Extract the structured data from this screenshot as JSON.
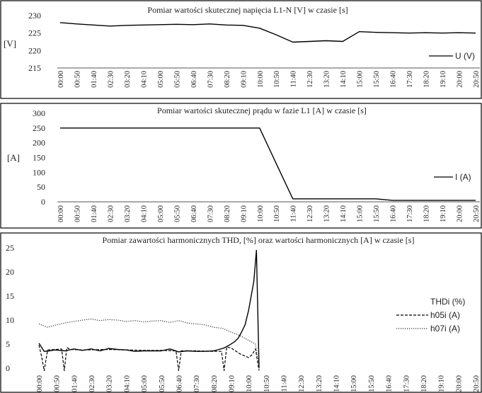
{
  "chart_data": [
    {
      "type": "line",
      "title": "Pomiar wartości skutecznej napięcia L1-N [V] w czasie [s]",
      "ylabel": "[V]",
      "xlabel": "",
      "ylim": [
        215,
        230
      ],
      "yticks": [
        215,
        220,
        225,
        230
      ],
      "categories": [
        "00:00",
        "00:50",
        "01:40",
        "02:30",
        "03:20",
        "04:10",
        "05:00",
        "05:50",
        "06:40",
        "07:30",
        "08:20",
        "09:10",
        "10:00",
        "10:50",
        "11:40",
        "12:30",
        "13:20",
        "14:10",
        "15:00",
        "15:50",
        "16:40",
        "17:30",
        "18:20",
        "19:10",
        "20:00",
        "20:50"
      ],
      "legend": "right",
      "series": [
        {
          "name": "U (V)",
          "color": "#000000",
          "dash": "solid",
          "values": [
            228,
            227.6,
            227.3,
            227,
            227.2,
            227.3,
            227.4,
            227.5,
            227.4,
            227.6,
            227.3,
            227.2,
            226.4,
            224.5,
            222.4,
            222.6,
            222.8,
            222.6,
            225.4,
            225.2,
            225.1,
            225,
            225.1,
            225,
            225.1,
            225
          ]
        }
      ]
    },
    {
      "type": "line",
      "title": "Pomiar wartości skutecznej prądu w fazie L1 [A] w czasie [s]",
      "ylabel": "[A]",
      "xlabel": "",
      "ylim": [
        0,
        300
      ],
      "yticks": [
        0,
        50,
        100,
        150,
        200,
        250,
        300
      ],
      "categories": [
        "00:00",
        "00:50",
        "01:40",
        "02:30",
        "03:20",
        "04:10",
        "05:00",
        "05:50",
        "06:40",
        "07:30",
        "08:20",
        "09:10",
        "10:00",
        "10:50",
        "11:40",
        "12:30",
        "13:20",
        "14:10",
        "15:00",
        "15:50",
        "16:40",
        "17:30",
        "18:20",
        "19:10",
        "20:00",
        "20:50"
      ],
      "legend": "right",
      "series": [
        {
          "name": "I (A)",
          "color": "#000000",
          "dash": "solid",
          "values": [
            250,
            250,
            250,
            250,
            250,
            250,
            250,
            250,
            250,
            250,
            250,
            250,
            250,
            130,
            10,
            10,
            10,
            10,
            10,
            10,
            5,
            5,
            5,
            5,
            5,
            5
          ]
        }
      ]
    },
    {
      "type": "line",
      "title": "Pomiar zawartości harmonicznych THD, [%] oraz wartości harmonicznych [A] w czasie [s]",
      "ylabel": "",
      "xlabel": "",
      "ylim": [
        0,
        25
      ],
      "yticks": [
        0,
        5,
        10,
        15,
        20,
        25
      ],
      "categories": [
        "00:00",
        "00:50",
        "01:40",
        "02:30",
        "03:20",
        "04:10",
        "05:00",
        "05:50",
        "06:40",
        "07:30",
        "08:20",
        "09:10",
        "10:00",
        "10:50",
        "11:40",
        "12:30",
        "13:20",
        "14:10",
        "15:00",
        "15:50",
        "16:40",
        "17:30",
        "18:20",
        "19:10",
        "20:00",
        "20:50"
      ],
      "legend": "right",
      "series": [
        {
          "name": "THDi (%)",
          "color": "#000000",
          "dash": "solid",
          "x": [
            0,
            0.3,
            0.6,
            0.9,
            1.2,
            1.5,
            2,
            2.5,
            3,
            3.5,
            4,
            4.5,
            5,
            5.5,
            6,
            6.5,
            7,
            7.5,
            8,
            8.5,
            9,
            9.5,
            10,
            10.3,
            10.6,
            10.9,
            11.2,
            11.4,
            11.6,
            11.8,
            12,
            12.15,
            12.3,
            12.45,
            12.6
          ],
          "values": [
            5.2,
            3.5,
            3.6,
            3.8,
            3.7,
            3.6,
            4,
            3.7,
            4,
            3.6,
            4.1,
            3.9,
            3.8,
            3.5,
            3.6,
            3.6,
            3.6,
            4,
            3.4,
            3.6,
            3.5,
            3.5,
            3.6,
            3.9,
            4.2,
            4.8,
            5.5,
            6.2,
            7.5,
            9,
            12,
            15,
            18,
            24.5,
            0
          ]
        },
        {
          "name": "h05i (A)",
          "color": "#000000",
          "dash": "dashed",
          "x": [
            0,
            0.15,
            0.3,
            0.5,
            1,
            1.3,
            1.45,
            1.6,
            1.8,
            2.5,
            4,
            6,
            7,
            7.85,
            8,
            8.15,
            8.5,
            9,
            10,
            10.45,
            10.6,
            10.75,
            11,
            11.5,
            12,
            12.2,
            12.4,
            12.6
          ],
          "values": [
            4.8,
            2.5,
            -0.5,
            3.8,
            3.9,
            4,
            -0.5,
            4.3,
            3.9,
            3.8,
            3.9,
            3.7,
            3.7,
            3.6,
            -0.5,
            3.6,
            3.6,
            3.6,
            3.5,
            3.5,
            -0.5,
            4.4,
            4.2,
            3,
            2.2,
            2.8,
            4,
            -0.5
          ]
        },
        {
          "name": "h07i (A)",
          "color": "#333333",
          "dash": "dotted",
          "x": [
            0,
            0.5,
            1,
            1.5,
            2,
            2.5,
            3,
            3.5,
            4,
            4.5,
            5,
            5.5,
            6,
            6.5,
            7,
            7.5,
            8,
            8.5,
            9,
            9.5,
            10,
            10.5,
            11,
            11.5,
            12,
            12.4,
            12.6
          ],
          "values": [
            9.2,
            8.5,
            9,
            9.4,
            9.7,
            10,
            10.2,
            9.9,
            10.1,
            10,
            9.7,
            9.9,
            9.6,
            9.8,
            9.9,
            9.5,
            9.9,
            9.4,
            9.2,
            9,
            8.5,
            8.3,
            7.5,
            6.8,
            5.8,
            5,
            0
          ]
        }
      ]
    }
  ]
}
